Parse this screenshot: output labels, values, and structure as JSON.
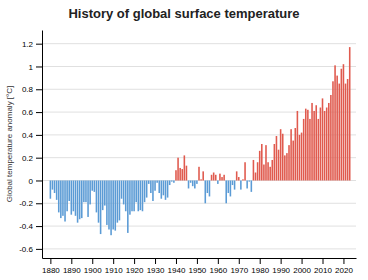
{
  "chart_data": {
    "type": "bar",
    "title": "History of global surface temperature",
    "ylabel": "Global temperature anomaly [°C]",
    "x": [
      1880,
      1881,
      1882,
      1883,
      1884,
      1885,
      1886,
      1887,
      1888,
      1889,
      1890,
      1891,
      1892,
      1893,
      1894,
      1895,
      1896,
      1897,
      1898,
      1899,
      1900,
      1901,
      1902,
      1903,
      1904,
      1905,
      1906,
      1907,
      1908,
      1909,
      1910,
      1911,
      1912,
      1913,
      1914,
      1915,
      1916,
      1917,
      1918,
      1919,
      1920,
      1921,
      1922,
      1923,
      1924,
      1925,
      1926,
      1927,
      1928,
      1929,
      1930,
      1931,
      1932,
      1933,
      1934,
      1935,
      1936,
      1937,
      1938,
      1939,
      1940,
      1941,
      1942,
      1943,
      1944,
      1945,
      1946,
      1947,
      1948,
      1949,
      1950,
      1951,
      1952,
      1953,
      1954,
      1955,
      1956,
      1957,
      1958,
      1959,
      1960,
      1961,
      1962,
      1963,
      1964,
      1965,
      1966,
      1967,
      1968,
      1969,
      1970,
      1971,
      1972,
      1973,
      1974,
      1975,
      1976,
      1977,
      1978,
      1979,
      1980,
      1981,
      1982,
      1983,
      1984,
      1985,
      1986,
      1987,
      1988,
      1989,
      1990,
      1991,
      1992,
      1993,
      1994,
      1995,
      1996,
      1997,
      1998,
      1999,
      2000,
      2001,
      2002,
      2003,
      2004,
      2005,
      2006,
      2007,
      2008,
      2009,
      2010,
      2011,
      2012,
      2013,
      2014,
      2015,
      2016,
      2017,
      2018,
      2019,
      2020,
      2021,
      2022,
      2023
    ],
    "values": [
      -0.16,
      -0.08,
      -0.11,
      -0.17,
      -0.28,
      -0.33,
      -0.31,
      -0.36,
      -0.27,
      -0.18,
      -0.3,
      -0.27,
      -0.31,
      -0.37,
      -0.34,
      -0.33,
      -0.19,
      -0.19,
      -0.32,
      -0.21,
      -0.09,
      -0.1,
      -0.28,
      -0.37,
      -0.47,
      -0.26,
      -0.22,
      -0.39,
      -0.43,
      -0.48,
      -0.43,
      -0.44,
      -0.37,
      -0.35,
      -0.16,
      -0.21,
      -0.27,
      -0.46,
      -0.3,
      -0.27,
      -0.27,
      -0.19,
      -0.27,
      -0.26,
      -0.27,
      -0.19,
      -0.15,
      -0.03,
      -0.11,
      -0.18,
      -0.09,
      -0.02,
      -0.11,
      -0.16,
      -0.13,
      -0.17,
      -0.15,
      -0.04,
      -0.01,
      -0.02,
      0.09,
      0.2,
      0.11,
      0.1,
      0.22,
      0.13,
      -0.07,
      -0.02,
      -0.05,
      -0.07,
      -0.03,
      0.12,
      0.01,
      0.08,
      -0.2,
      -0.11,
      -0.14,
      0.05,
      0.07,
      0.05,
      -0.03,
      0.06,
      0.03,
      0.05,
      -0.2,
      -0.11,
      -0.14,
      -0.04,
      -0.08,
      0.08,
      0.03,
      -0.08,
      0.01,
      0.16,
      -0.07,
      -0.01,
      -0.1,
      0.18,
      0.07,
      0.16,
      0.26,
      0.32,
      0.14,
      0.31,
      0.16,
      0.12,
      0.18,
      0.32,
      0.39,
      0.27,
      0.45,
      0.41,
      0.22,
      0.24,
      0.31,
      0.45,
      0.35,
      0.46,
      0.61,
      0.4,
      0.42,
      0.54,
      0.63,
      0.62,
      0.54,
      0.68,
      0.61,
      0.66,
      0.54,
      0.64,
      0.72,
      0.61,
      0.64,
      0.68,
      0.75,
      0.87,
      1.01,
      0.92,
      0.85,
      0.98,
      1.02,
      0.85,
      0.89,
      1.17
    ],
    "colors": [
      "#5b9bd5",
      "#5b9bd5",
      "#5b9bd5",
      "#5b9bd5",
      "#5b9bd5",
      "#5b9bd5",
      "#5b9bd5",
      "#5b9bd5",
      "#5b9bd5",
      "#5b9bd5",
      "#5b9bd5",
      "#5b9bd5",
      "#5b9bd5",
      "#5b9bd5",
      "#5b9bd5",
      "#5b9bd5",
      "#5b9bd5",
      "#5b9bd5",
      "#5b9bd5",
      "#5b9bd5",
      "#5b9bd5",
      "#5b9bd5",
      "#5b9bd5",
      "#5b9bd5",
      "#5b9bd5",
      "#5b9bd5",
      "#5b9bd5",
      "#5b9bd5",
      "#5b9bd5",
      "#5b9bd5",
      "#5b9bd5",
      "#5b9bd5",
      "#5b9bd5",
      "#5b9bd5",
      "#5b9bd5",
      "#5b9bd5",
      "#5b9bd5",
      "#5b9bd5",
      "#5b9bd5",
      "#5b9bd5",
      "#5b9bd5",
      "#5b9bd5",
      "#5b9bd5",
      "#5b9bd5",
      "#5b9bd5",
      "#5b9bd5",
      "#5b9bd5",
      "#5b9bd5",
      "#5b9bd5",
      "#5b9bd5",
      "#5b9bd5",
      "#5b9bd5",
      "#5b9bd5",
      "#5b9bd5",
      "#5b9bd5",
      "#5b9bd5",
      "#5b9bd5",
      "#5b9bd5",
      "#5b9bd5",
      "#5b9bd5",
      "#e05a4e",
      "#e05a4e",
      "#e05a4e",
      "#e05a4e",
      "#e05a4e",
      "#e05a4e",
      "#5b9bd5",
      "#5b9bd5",
      "#5b9bd5",
      "#5b9bd5",
      "#5b9bd5",
      "#e05a4e",
      "#e05a4e",
      "#e05a4e",
      "#5b9bd5",
      "#5b9bd5",
      "#5b9bd5",
      "#e05a4e",
      "#e05a4e",
      "#e05a4e",
      "#5b9bd5",
      "#e05a4e",
      "#e05a4e",
      "#e05a4e",
      "#5b9bd5",
      "#5b9bd5",
      "#5b9bd5",
      "#5b9bd5",
      "#5b9bd5",
      "#e05a4e",
      "#e05a4e",
      "#5b9bd5",
      "#e05a4e",
      "#e05a4e",
      "#5b9bd5",
      "#5b9bd5",
      "#5b9bd5",
      "#e05a4e",
      "#e05a4e",
      "#e05a4e",
      "#e05a4e",
      "#e05a4e",
      "#e05a4e",
      "#e05a4e",
      "#e05a4e",
      "#e05a4e",
      "#e05a4e",
      "#e05a4e",
      "#e05a4e",
      "#e05a4e",
      "#e05a4e",
      "#e05a4e",
      "#e05a4e",
      "#e05a4e",
      "#e05a4e",
      "#e05a4e",
      "#e05a4e",
      "#e05a4e",
      "#e05a4e",
      "#e05a4e",
      "#e05a4e",
      "#e05a4e",
      "#e05a4e",
      "#e05a4e",
      "#e05a4e",
      "#e05a4e",
      "#e05a4e",
      "#e05a4e",
      "#e05a4e",
      "#e05a4e",
      "#e05a4e",
      "#e05a4e",
      "#e05a4e",
      "#e05a4e",
      "#e05a4e",
      "#e05a4e",
      "#e05a4e",
      "#e05a4e",
      "#e05a4e",
      "#e05a4e",
      "#e05a4e",
      "#e05a4e",
      "#e05a4e",
      "#e05a4e"
    ],
    "xlim": [
      1876,
      2026
    ],
    "xticks": [
      1880,
      1890,
      1900,
      1910,
      1920,
      1930,
      1940,
      1950,
      1960,
      1970,
      1980,
      1990,
      2000,
      2010,
      2020
    ],
    "ylim": [
      -0.68,
      1.32
    ],
    "yticks": [
      -0.6,
      -0.4,
      -0.2,
      0,
      0.2,
      0.4,
      0.6,
      0.8,
      1,
      1.2
    ],
    "grid": true
  }
}
